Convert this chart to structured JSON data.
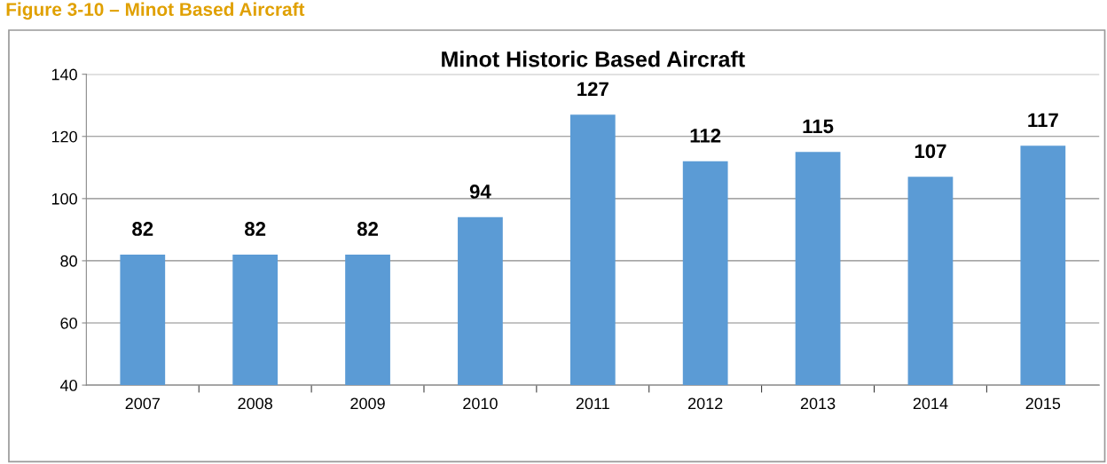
{
  "chart_data": {
    "type": "bar",
    "title": "Minot Historic Based Aircraft",
    "annotations": [
      "Figure 3-10 – Minot Based Aircraft"
    ],
    "categories": [
      "2007",
      "2008",
      "2009",
      "2010",
      "2011",
      "2012",
      "2013",
      "2014",
      "2015"
    ],
    "values": [
      82,
      82,
      82,
      94,
      127,
      112,
      115,
      107,
      117
    ],
    "color": "#5b9bd5",
    "ylim": [
      40,
      140
    ],
    "yticks": [
      40,
      60,
      80,
      100,
      120,
      140
    ],
    "grid": "y",
    "data_labels": true
  }
}
